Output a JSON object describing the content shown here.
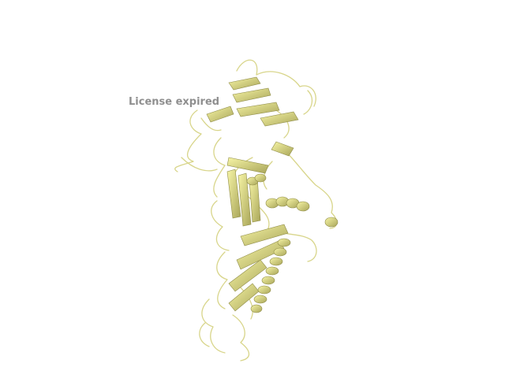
{
  "viewer": {
    "watermark_text": "License expired",
    "watermark_color": "#8f8f8f",
    "structure_type": "protein-ribbon-cartoon",
    "ribbon_color": "#f2f08c",
    "ribbon_shade_color": "#8f8c47",
    "background_color": "#ffffff"
  }
}
